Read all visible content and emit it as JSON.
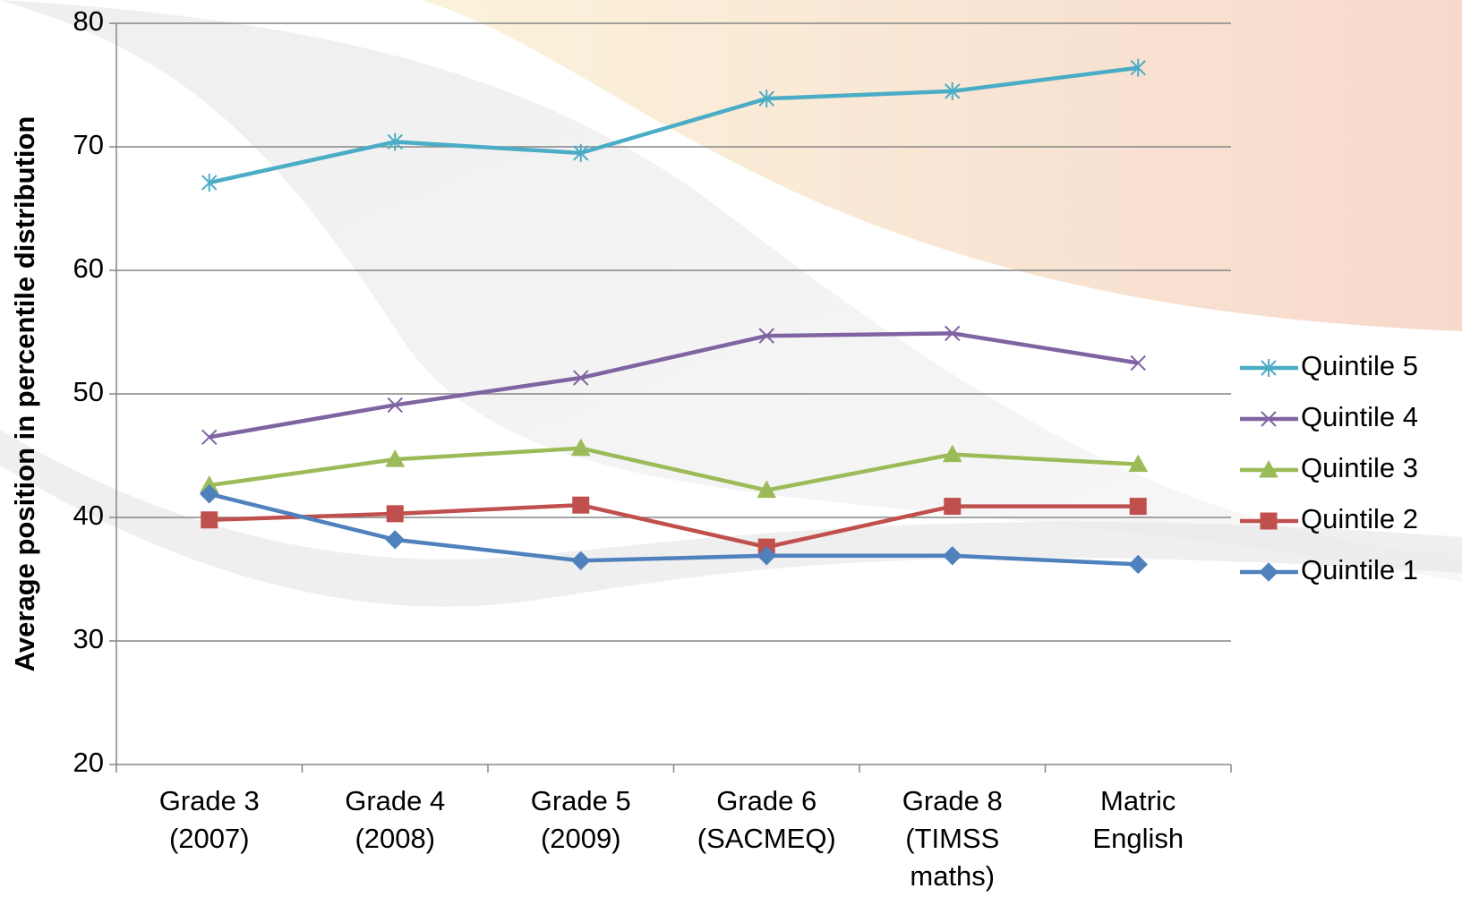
{
  "chart_data": {
    "type": "line",
    "y_label": "Average position in percentile distribution",
    "categories": [
      "Grade 3 (2007)",
      "Grade 4 (2008)",
      "Grade 5 (2009)",
      "Grade 6 (SACMEQ)",
      "Grade 8 (TIMSS maths)",
      "Matric English"
    ],
    "series": [
      {
        "name": "Quintile 5",
        "color": "#4bacc6",
        "marker": "asterisk",
        "values": [
          67.1,
          70.4,
          69.5,
          73.9,
          74.5,
          76.4
        ]
      },
      {
        "name": "Quintile 4",
        "color": "#8064a2",
        "marker": "x",
        "values": [
          46.5,
          49.1,
          51.3,
          54.7,
          54.9,
          52.5
        ]
      },
      {
        "name": "Quintile 3",
        "color": "#9bbb59",
        "marker": "triangle",
        "values": [
          42.6,
          44.7,
          45.6,
          42.2,
          45.1,
          44.3
        ]
      },
      {
        "name": "Quintile 2",
        "color": "#c0504d",
        "marker": "square",
        "values": [
          39.8,
          40.3,
          41.0,
          37.6,
          40.9,
          40.9
        ]
      },
      {
        "name": "Quintile 1",
        "color": "#4f81bd",
        "marker": "diamond",
        "values": [
          41.9,
          38.2,
          36.5,
          36.9,
          36.9,
          36.2
        ]
      }
    ],
    "ylim": [
      20,
      80
    ],
    "yticks": [
      20,
      30,
      40,
      50,
      60,
      70,
      80
    ],
    "grid": true,
    "legend": "right"
  }
}
